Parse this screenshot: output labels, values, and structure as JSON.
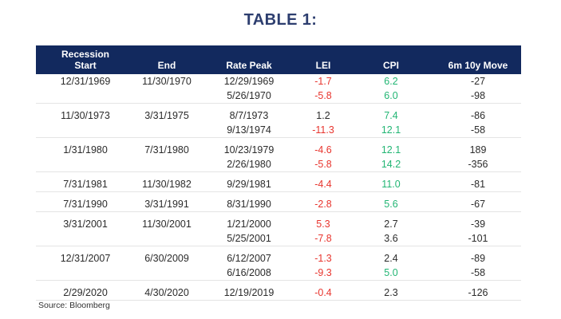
{
  "title": "TABLE 1:",
  "source": "Source: Bloomberg",
  "colors": {
    "navy": "#12295E",
    "title_navy": "#2D3E6F",
    "red": "#E8352E",
    "green": "#21B573",
    "ink": "#2B2B2B",
    "separator": "#E4E4E4",
    "source_ink": "#333333"
  },
  "table": {
    "header": {
      "start_line1": "Recession",
      "start_line2": "Start",
      "end": "End",
      "rate_peak": "Rate Peak",
      "lei": "LEI",
      "cpi": "CPI",
      "move": "6m 10y Move"
    },
    "groups": [
      {
        "start": "12/31/1969",
        "end": "11/30/1970",
        "rows": [
          {
            "rate_peak": "12/29/1969",
            "lei": "-1.7",
            "lei_color": "red",
            "cpi": "6.2",
            "cpi_color": "green",
            "move": "-27"
          },
          {
            "rate_peak": "5/26/1970",
            "lei": "-5.8",
            "lei_color": "red",
            "cpi": "6.0",
            "cpi_color": "green",
            "move": "-98"
          }
        ]
      },
      {
        "start": "11/30/1973",
        "end": "3/31/1975",
        "rows": [
          {
            "rate_peak": "8/7/1973",
            "lei": "1.2",
            "lei_color": "ink",
            "cpi": "7.4",
            "cpi_color": "green",
            "move": "-86"
          },
          {
            "rate_peak": "9/13/1974",
            "lei": "-11.3",
            "lei_color": "red",
            "cpi": "12.1",
            "cpi_color": "green",
            "move": "-58"
          }
        ]
      },
      {
        "start": "1/31/1980",
        "end": "7/31/1980",
        "rows": [
          {
            "rate_peak": "10/23/1979",
            "lei": "-4.6",
            "lei_color": "red",
            "cpi": "12.1",
            "cpi_color": "green",
            "move": "189"
          },
          {
            "rate_peak": "2/26/1980",
            "lei": "-5.8",
            "lei_color": "red",
            "cpi": "14.2",
            "cpi_color": "green",
            "move": "-356"
          }
        ]
      },
      {
        "start": "7/31/1981",
        "end": "11/30/1982",
        "rows": [
          {
            "rate_peak": "9/29/1981",
            "lei": "-4.4",
            "lei_color": "red",
            "cpi": "11.0",
            "cpi_color": "green",
            "move": "-81"
          }
        ]
      },
      {
        "start": "7/31/1990",
        "end": "3/31/1991",
        "rows": [
          {
            "rate_peak": "8/31/1990",
            "lei": "-2.8",
            "lei_color": "red",
            "cpi": "5.6",
            "cpi_color": "green",
            "move": "-67"
          }
        ]
      },
      {
        "start": "3/31/2001",
        "end": "11/30/2001",
        "rows": [
          {
            "rate_peak": "1/21/2000",
            "lei": "5.3",
            "lei_color": "red",
            "cpi": "2.7",
            "cpi_color": "ink",
            "move": "-39"
          },
          {
            "rate_peak": "5/25/2001",
            "lei": "-7.8",
            "lei_color": "red",
            "cpi": "3.6",
            "cpi_color": "ink",
            "move": "-101"
          }
        ]
      },
      {
        "start": "12/31/2007",
        "end": "6/30/2009",
        "rows": [
          {
            "rate_peak": "6/12/2007",
            "lei": "-1.3",
            "lei_color": "red",
            "cpi": "2.4",
            "cpi_color": "ink",
            "move": "-89"
          },
          {
            "rate_peak": "6/16/2008",
            "lei": "-9.3",
            "lei_color": "red",
            "cpi": "5.0",
            "cpi_color": "green",
            "move": "-58"
          }
        ]
      },
      {
        "start": "2/29/2020",
        "end": "4/30/2020",
        "rows": [
          {
            "rate_peak": "12/19/2019",
            "lei": "-0.4",
            "lei_color": "red",
            "cpi": "2.3",
            "cpi_color": "ink",
            "move": "-126"
          }
        ]
      }
    ]
  },
  "chart_data": {
    "type": "table",
    "title": "TABLE 1:",
    "columns": [
      "Recession Start",
      "End",
      "Rate Peak",
      "LEI",
      "CPI",
      "6m 10y Move"
    ],
    "rows": [
      [
        "12/31/1969",
        "11/30/1970",
        "12/29/1969",
        "-1.7",
        "6.2",
        "-27"
      ],
      [
        "",
        "",
        "5/26/1970",
        "-5.8",
        "6.0",
        "-98"
      ],
      [
        "11/30/1973",
        "3/31/1975",
        "8/7/1973",
        "1.2",
        "7.4",
        "-86"
      ],
      [
        "",
        "",
        "9/13/1974",
        "-11.3",
        "12.1",
        "-58"
      ],
      [
        "1/31/1980",
        "7/31/1980",
        "10/23/1979",
        "-4.6",
        "12.1",
        "189"
      ],
      [
        "",
        "",
        "2/26/1980",
        "-5.8",
        "14.2",
        "-356"
      ],
      [
        "7/31/1981",
        "11/30/1982",
        "9/29/1981",
        "-4.4",
        "11.0",
        "-81"
      ],
      [
        "7/31/1990",
        "3/31/1991",
        "8/31/1990",
        "-2.8",
        "5.6",
        "-67"
      ],
      [
        "3/31/2001",
        "11/30/2001",
        "1/21/2000",
        "5.3",
        "2.7",
        "-39"
      ],
      [
        "",
        "",
        "5/25/2001",
        "-7.8",
        "3.6",
        "-101"
      ],
      [
        "12/31/2007",
        "6/30/2009",
        "6/12/2007",
        "-1.3",
        "2.4",
        "-89"
      ],
      [
        "",
        "",
        "6/16/2008",
        "-9.3",
        "5.0",
        "-58"
      ],
      [
        "2/29/2020",
        "4/30/2020",
        "12/19/2019",
        "-0.4",
        "2.3",
        "-126"
      ]
    ],
    "notes": {
      "lei_red_negative_or_flagged": true,
      "cpi_green_when_elevated": true,
      "source": "Source: Bloomberg"
    }
  }
}
